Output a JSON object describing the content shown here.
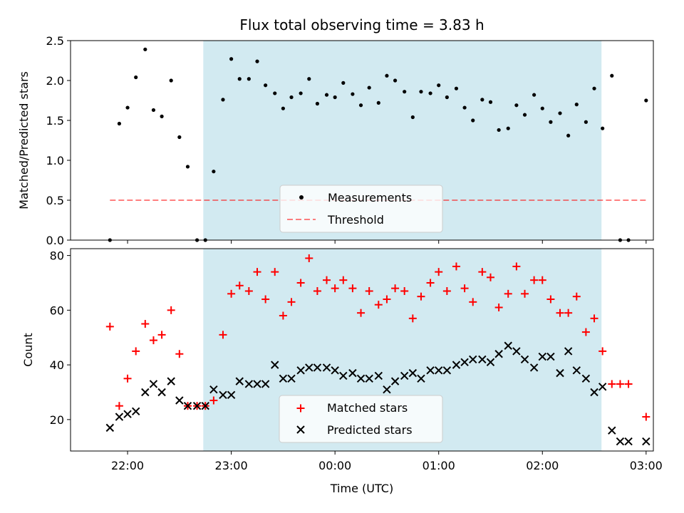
{
  "chart_data": {
    "type": "scatter",
    "title": "Flux total observing time = 3.83 h",
    "xlabel": "Time (UTC)",
    "x_ticks": [
      "22:00",
      "23:00",
      "00:00",
      "01:00",
      "02:00",
      "03:00"
    ],
    "x_tick_hours": [
      22,
      23,
      24,
      25,
      26,
      27
    ],
    "xlim_hours": [
      21.45,
      27.07
    ],
    "observing_window_hours": [
      22.73,
      26.57
    ],
    "shaded_color": "#add8e6",
    "x_hours": [
      21.83,
      21.92,
      22.0,
      22.08,
      22.17,
      22.25,
      22.33,
      22.42,
      22.5,
      22.58,
      22.67,
      22.75,
      22.83,
      22.92,
      23.0,
      23.08,
      23.17,
      23.25,
      23.33,
      23.42,
      23.5,
      23.58,
      23.67,
      23.75,
      23.83,
      23.92,
      24.0,
      24.08,
      24.17,
      24.25,
      24.33,
      24.42,
      24.5,
      24.58,
      24.67,
      24.75,
      24.83,
      24.92,
      25.0,
      25.08,
      25.17,
      25.25,
      25.33,
      25.42,
      25.5,
      25.58,
      25.67,
      25.75,
      25.83,
      25.92,
      26.0,
      26.08,
      26.17,
      26.25,
      26.33,
      26.42,
      26.5,
      26.58,
      26.67,
      26.75,
      26.83
    ],
    "panels": [
      {
        "ylabel": "Matched/Predicted stars",
        "ylim": [
          0,
          2.5
        ],
        "y_ticks": [
          "0.0",
          "0.5",
          "1.0",
          "1.5",
          "2.0",
          "2.5"
        ],
        "y_tick_values": [
          0,
          0.5,
          1.0,
          1.5,
          2.0,
          2.5
        ],
        "threshold": 0.5,
        "series": [
          {
            "name": "Measurements",
            "marker": "dot",
            "color": "#000000",
            "values": [
              0,
              1.46,
              1.66,
              2.04,
              2.39,
              1.63,
              1.55,
              2.0,
              1.29,
              0.92,
              0,
              0,
              0.86,
              1.76,
              2.27,
              2.02,
              2.02,
              2.24,
              1.94,
              1.84,
              1.65,
              1.79,
              1.84,
              2.02,
              1.71,
              1.82,
              1.79,
              1.97,
              1.83,
              1.69,
              1.91,
              1.72,
              2.06,
              2.0,
              1.86,
              1.54,
              1.86,
              1.84,
              1.94,
              1.79,
              1.9,
              1.66,
              1.5,
              1.76,
              1.73,
              1.38,
              1.4,
              1.69,
              1.57,
              1.82,
              1.65,
              1.48,
              1.59,
              1.31,
              1.7,
              1.48,
              1.9,
              1.4,
              2.06,
              0,
              0
            ]
          },
          {
            "name": "Threshold",
            "style": "dashed",
            "color": "#ff0000"
          }
        ],
        "extra_points": [
          {
            "x": 27.0,
            "y": 1.75
          }
        ],
        "legend": "lower-center"
      },
      {
        "ylabel": "Count",
        "ylim": [
          8.5,
          82.5
        ],
        "y_ticks": [
          "20",
          "40",
          "60",
          "80"
        ],
        "y_tick_values": [
          20,
          40,
          60,
          80
        ],
        "series": [
          {
            "name": "Matched stars",
            "marker": "plus",
            "color": "#ff0000",
            "values": [
              54,
              25,
              35,
              45,
              55,
              49,
              51,
              60,
              44,
              25,
              25,
              25,
              27,
              51,
              66,
              69,
              67,
              74,
              64,
              74,
              58,
              63,
              70,
              79,
              67,
              71,
              68,
              71,
              68,
              59,
              67,
              62,
              64,
              68,
              67,
              57,
              65,
              70,
              74,
              67,
              76,
              68,
              63,
              74,
              72,
              61,
              66,
              76,
              66,
              71,
              71,
              64,
              59,
              59,
              65,
              52,
              57,
              45,
              33,
              33,
              33
            ]
          },
          {
            "name": "Predicted stars",
            "marker": "x",
            "color": "#000000",
            "values": [
              17,
              21,
              22,
              23,
              30,
              33,
              30,
              34,
              27,
              25,
              25,
              25,
              31,
              29,
              29,
              34,
              33,
              33,
              33,
              40,
              35,
              35,
              38,
              39,
              39,
              39,
              38,
              36,
              37,
              35,
              35,
              36,
              31,
              34,
              36,
              37,
              35,
              38,
              38,
              38,
              40,
              41,
              42,
              42,
              41,
              44,
              47,
              45,
              42,
              39,
              43,
              43,
              37,
              45,
              38,
              35,
              30,
              32,
              16,
              12,
              12
            ]
          }
        ],
        "extra_points_matched": [
          {
            "x": 27.0,
            "y": 21
          }
        ],
        "extra_points_predicted": [
          {
            "x": 27.0,
            "y": 12
          }
        ],
        "legend": "lower-center"
      }
    ]
  }
}
